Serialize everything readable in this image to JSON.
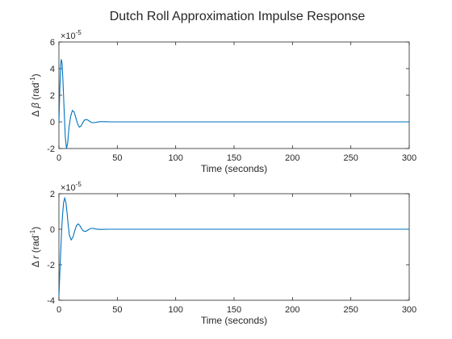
{
  "chart_data": {
    "title": "Dutch Roll Approximation Impulse Response",
    "colors": {
      "line": "#0072bd",
      "axes": "#262626"
    },
    "panels": [
      {
        "type": "line",
        "xlabel": "Time (seconds)",
        "ylabel": {
          "symbol": "Δ",
          "var": "β",
          "unit": "(rad",
          "exp": "-1",
          "close": ")"
        },
        "xlim": [
          0,
          300
        ],
        "ylim": [
          -2,
          6
        ],
        "xticks": [
          "0",
          "50",
          "100",
          "150",
          "200",
          "250",
          "300"
        ],
        "xtick_values": [
          0,
          50,
          100,
          150,
          200,
          250,
          300
        ],
        "yticks": [
          "-2",
          "0",
          "2",
          "4",
          "6"
        ],
        "ytick_values": [
          -2,
          0,
          2,
          4,
          6
        ],
        "scale_label": {
          "base": "×10",
          "exp": "-5"
        },
        "grid": false,
        "x": [
          0,
          0.8,
          1.5,
          2,
          2.7,
          3.5,
          4.5,
          5.5,
          6.5,
          7.5,
          8.5,
          10,
          11.5,
          13,
          14.5,
          16,
          17.5,
          19,
          20.5,
          22,
          24,
          26,
          28,
          30,
          33,
          36,
          40,
          45,
          50,
          60,
          80,
          100,
          150,
          200,
          250,
          300
        ],
        "y": [
          0,
          2.5,
          4.2,
          4.7,
          4.4,
          3.0,
          0.8,
          -1.2,
          -2.0,
          -1.6,
          -0.5,
          0.4,
          0.85,
          0.75,
          0.3,
          -0.15,
          -0.4,
          -0.3,
          -0.05,
          0.15,
          0.18,
          0.06,
          -0.05,
          -0.06,
          -0.01,
          0.02,
          0.01,
          0,
          0,
          0,
          0,
          0,
          0,
          0,
          0,
          0
        ]
      },
      {
        "type": "line",
        "xlabel": "Time (seconds)",
        "ylabel": {
          "symbol": "Δ",
          "var": "r",
          "unit": "(rad",
          "exp": "-1",
          "close": ")"
        },
        "xlim": [
          0,
          300
        ],
        "ylim": [
          -4,
          2
        ],
        "xticks": [
          "0",
          "50",
          "100",
          "150",
          "200",
          "250",
          "300"
        ],
        "xtick_values": [
          0,
          50,
          100,
          150,
          200,
          250,
          300
        ],
        "yticks": [
          "-4",
          "-2",
          "0",
          "2"
        ],
        "ytick_values": [
          -4,
          -2,
          0,
          2
        ],
        "scale_label": {
          "base": "×10",
          "exp": "-5"
        },
        "grid": false,
        "x": [
          0,
          0.7,
          1.5,
          2.3,
          3,
          4,
          5,
          6,
          7,
          8,
          9,
          10.5,
          12,
          13.5,
          15,
          16.5,
          18,
          19.5,
          21,
          23,
          25,
          27,
          29,
          31,
          34,
          38,
          42,
          46,
          50,
          60,
          80,
          100,
          150,
          200,
          250,
          300
        ],
        "y": [
          -3.8,
          -2.6,
          -1.3,
          -0.1,
          0.7,
          1.5,
          1.75,
          1.5,
          0.9,
          0.2,
          -0.35,
          -0.6,
          -0.45,
          -0.1,
          0.2,
          0.3,
          0.2,
          0.02,
          -0.1,
          -0.12,
          -0.04,
          0.04,
          0.05,
          0.02,
          -0.01,
          -0.01,
          0,
          0,
          0,
          0,
          0,
          0,
          0,
          0,
          0,
          0
        ]
      }
    ]
  }
}
